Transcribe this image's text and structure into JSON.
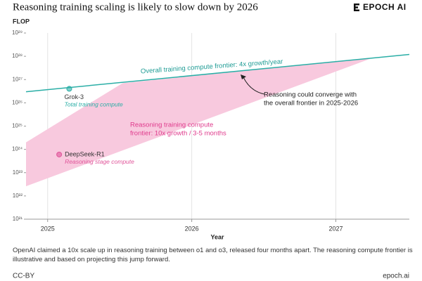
{
  "chart_data": {
    "type": "line",
    "title": "Reasoning training scaling is likely to slow down by 2026",
    "brand": "EPOCH AI",
    "y_label": "FLOP",
    "x_label": "Year",
    "log_y": true,
    "grid": true,
    "xlim": [
      2024.85,
      2027.51
    ],
    "xticks": [
      2025,
      2026,
      2027
    ],
    "ylim": [
      1e+21,
      1e+29
    ],
    "yticks": [
      {
        "value": 1e+21,
        "label": "10²¹"
      },
      {
        "value": 1e+22,
        "label": "10²²"
      },
      {
        "value": 1e+23,
        "label": "10²³"
      },
      {
        "value": 1e+24,
        "label": "10²⁴"
      },
      {
        "value": 1e+25,
        "label": "10²⁵"
      },
      {
        "value": 1e+26,
        "label": "10²⁶"
      },
      {
        "value": 1e+27,
        "label": "10²⁷"
      },
      {
        "value": 1e+28,
        "label": "10²⁸"
      },
      {
        "value": 1e+29,
        "label": "10²⁹"
      }
    ],
    "series": [
      {
        "type": "band",
        "color": "#f8c9de",
        "x": [
          2024.85,
          2025.52,
          2027.25
        ],
        "values": [
          2e+24,
          7e+26,
          8.3e+27
        ],
        "lower": [
          2.6e+22,
          9e+23,
          8.3e+27
        ]
      },
      {
        "type": "line",
        "color": "#2aaea6",
        "x": [
          2024.85,
          2027.51
        ],
        "values": [
          3e+26,
          1.2e+28
        ]
      }
    ],
    "points": [
      {
        "label": "Grok-3",
        "note": "Total training compute",
        "x": 2025.15,
        "y": 4e+26,
        "color": "#2aaea6"
      },
      {
        "label": "DeepSeek-R1",
        "note": "Reasoning stage compute",
        "x": 2025.08,
        "y": 6e+23,
        "color": "#e0559a"
      }
    ],
    "annotations": [
      {
        "lines": [
          "Overall training compute frontier: 4x growth/year"
        ],
        "color": "#1f9c95"
      },
      {
        "lines": [
          "Reasoning could converge with",
          "the overall frontier in 2025-2026"
        ],
        "color": "#222222"
      },
      {
        "lines": [
          "Reasoning training compute",
          "frontier: 10x growth / 3-5 months"
        ],
        "color": "#df3a8c"
      }
    ],
    "footnote": "OpenAI claimed a 10x scale up in reasoning training between o1 and o3, released four months apart. The reasoning compute frontier is illustrative and based on projecting this jump forward.",
    "license": "CC-BY",
    "site": "epoch.ai"
  }
}
